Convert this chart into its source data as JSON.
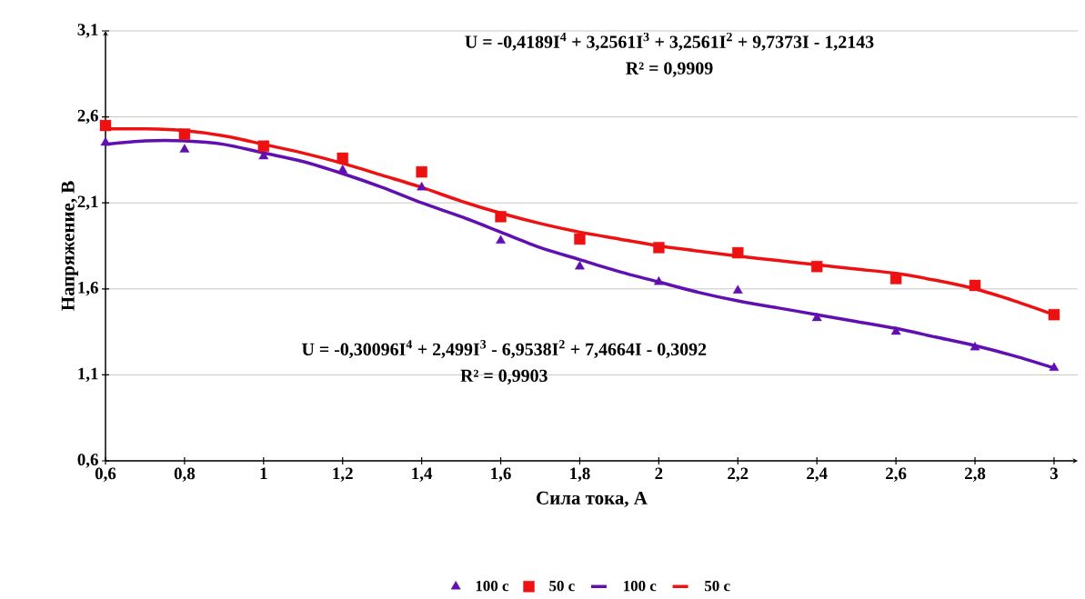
{
  "chart_data": {
    "type": "line",
    "xlabel": "Сила тока, А",
    "ylabel": "Напряжение, В",
    "annotations": [
      "U = -0,4189I$^{4}$ + 3,2561I$^{3}$ + 3,2561I$^{2}$ + 9,7373I - 1,2143",
      "R² = 0,9909",
      "U = -0,30096I$^{4}$ + 2,499I$^{3}$ - 6,9538I$^{2}$ + 7,4664I - 0,3092",
      "R² = 0,9903"
    ],
    "x": [
      0.6,
      0.8,
      1.0,
      1.2,
      1.4,
      1.6,
      1.8,
      2.0,
      2.2,
      2.4,
      2.6,
      2.8,
      3.0
    ],
    "series": [
      {
        "name": "100 c",
        "type": "scatter",
        "marker": "triangle",
        "color": "#6010b0",
        "values": [
          2.45,
          2.41,
          2.37,
          2.29,
          2.19,
          1.88,
          1.73,
          1.64,
          1.59,
          1.43,
          1.35,
          1.26,
          1.14
        ]
      },
      {
        "name": "50 c",
        "type": "scatter",
        "marker": "square",
        "color": "#ee1111",
        "values": [
          2.55,
          2.5,
          2.43,
          2.36,
          2.28,
          2.02,
          1.89,
          1.84,
          1.81,
          1.73,
          1.66,
          1.62,
          1.45
        ]
      },
      {
        "name": "100 c",
        "marker": "none",
        "color": "#6010b0",
        "x": [
          0.6,
          0.7,
          0.8,
          0.9,
          1.0,
          1.1,
          1.2,
          1.3,
          1.4,
          1.5,
          1.6,
          1.7,
          1.8,
          1.9,
          2.0,
          2.1,
          2.2,
          2.3,
          2.4,
          2.5,
          2.6,
          2.7,
          2.8,
          2.9,
          3.0
        ],
        "values": [
          2.44,
          2.46,
          2.46,
          2.44,
          2.39,
          2.34,
          2.27,
          2.19,
          2.1,
          2.02,
          1.93,
          1.84,
          1.77,
          1.7,
          1.64,
          1.58,
          1.53,
          1.49,
          1.45,
          1.41,
          1.37,
          1.32,
          1.27,
          1.21,
          1.14
        ]
      },
      {
        "name": "50 c",
        "marker": "none",
        "color": "#ee1111",
        "x": [
          0.6,
          0.7,
          0.8,
          0.9,
          1.0,
          1.1,
          1.2,
          1.3,
          1.4,
          1.5,
          1.6,
          1.7,
          1.8,
          1.9,
          2.0,
          2.1,
          2.2,
          2.3,
          2.4,
          2.5,
          2.6,
          2.7,
          2.8,
          2.9,
          3.0
        ],
        "values": [
          2.53,
          2.53,
          2.52,
          2.49,
          2.44,
          2.39,
          2.33,
          2.26,
          2.19,
          2.11,
          2.04,
          1.98,
          1.93,
          1.89,
          1.85,
          1.82,
          1.79,
          1.765,
          1.74,
          1.715,
          1.69,
          1.65,
          1.6,
          1.53,
          1.45
        ]
      }
    ],
    "xlim": [
      0.6,
      3.06
    ],
    "xticks": [
      {
        "value": 0.6,
        "label": "0,6"
      },
      {
        "value": 0.8,
        "label": "0,8"
      },
      1,
      {
        "value": 1.2,
        "label": "1,2"
      },
      {
        "value": 1.4,
        "label": "1,4"
      },
      {
        "value": 1.6,
        "label": "1,6"
      },
      {
        "value": 1.8,
        "label": "1,8"
      },
      2,
      {
        "value": 2.2,
        "label": "2,2"
      },
      {
        "value": 2.4,
        "label": "2,4"
      },
      {
        "value": 2.6,
        "label": "2,6"
      },
      {
        "value": 2.8,
        "label": "2,8"
      },
      3
    ],
    "ylim": [
      0.6,
      3.1
    ],
    "yticks": [
      {
        "value": 0.6,
        "label": "0,6"
      },
      {
        "value": 1.1,
        "label": "1,1"
      },
      {
        "value": 1.6,
        "label": "1,6"
      },
      {
        "value": 2.1,
        "label": "2,1"
      },
      {
        "value": 2.6,
        "label": "2,6"
      },
      {
        "value": 3.1,
        "label": "3,1"
      }
    ],
    "grid": "y",
    "legend": "bottom"
  }
}
